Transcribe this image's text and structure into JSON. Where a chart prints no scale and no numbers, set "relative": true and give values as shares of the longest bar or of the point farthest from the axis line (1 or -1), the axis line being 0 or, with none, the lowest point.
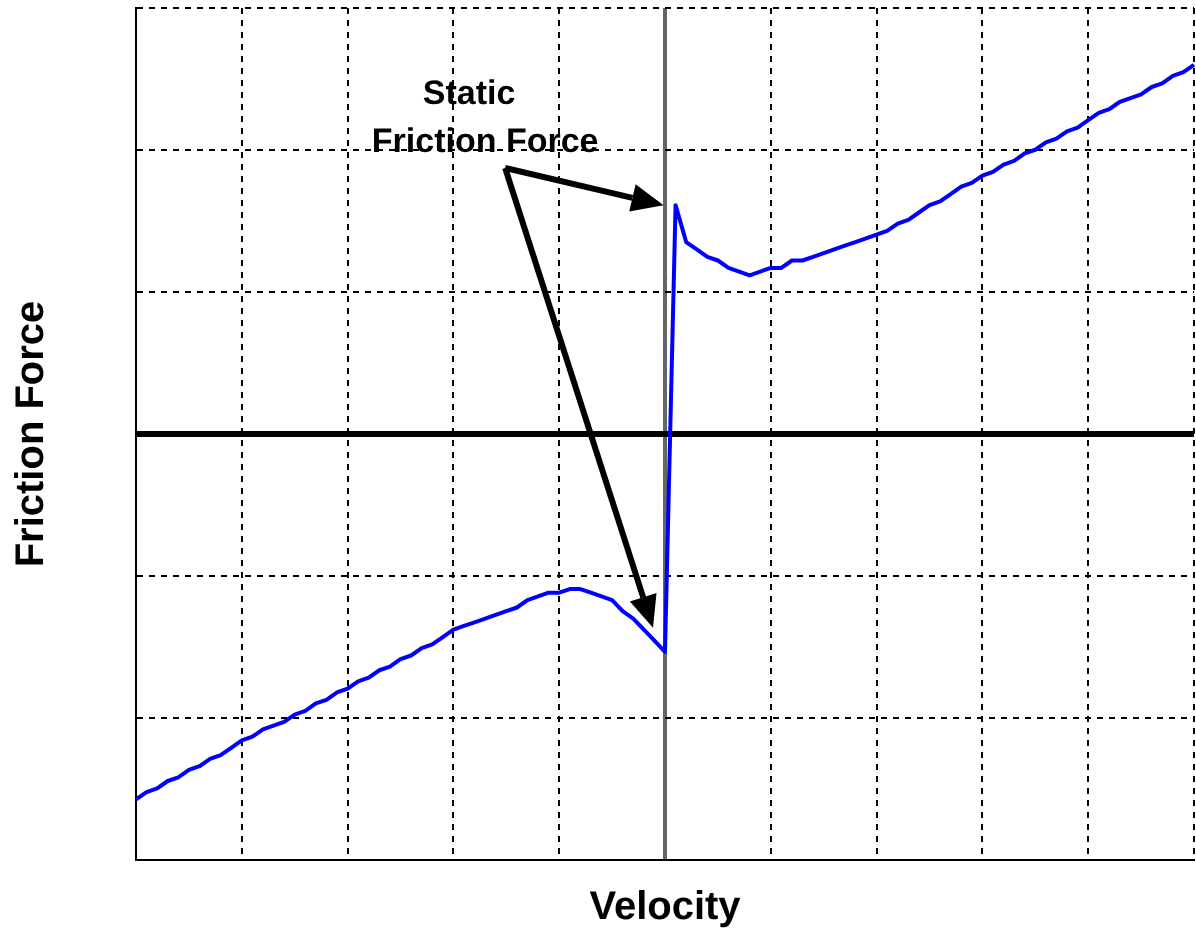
{
  "chart_data": {
    "type": "line",
    "relative": true,
    "xlabel": "Velocity",
    "ylabel": "Friction Force",
    "annotations": [
      "Static Friction Force"
    ],
    "categories": [
      null,
      null,
      null,
      null,
      null,
      null,
      null,
      null,
      null,
      null,
      null,
      null,
      null,
      null,
      null,
      null,
      null,
      null,
      null,
      null,
      null,
      null,
      null,
      null,
      null,
      null,
      null,
      null,
      null,
      null,
      null,
      null,
      null,
      null,
      null,
      null,
      null,
      null,
      null,
      null,
      null,
      null,
      null,
      null,
      null,
      null,
      null,
      null,
      null,
      null,
      null,
      null,
      null,
      null,
      null,
      null,
      null,
      null,
      null,
      null,
      null,
      null,
      null,
      null,
      null,
      null,
      null,
      null,
      null,
      null,
      null,
      null,
      null,
      null,
      null,
      null,
      null,
      null,
      null,
      null,
      null,
      null,
      null,
      null,
      null,
      null,
      null,
      null,
      null,
      null,
      null,
      null,
      null,
      null,
      null,
      null,
      null,
      null,
      null,
      null,
      null
    ],
    "grid": true,
    "marker": "none",
    "line_style": "solid",
    "series": [
      {
        "color": "#0000ff",
        "values": [
          -0.99,
          -0.97,
          -0.96,
          -0.94,
          -0.93,
          -0.91,
          -0.9,
          -0.88,
          -0.87,
          -0.85,
          -0.83,
          -0.82,
          -0.8,
          -0.79,
          -0.78,
          -0.76,
          -0.75,
          -0.73,
          -0.72,
          -0.7,
          -0.69,
          -0.67,
          -0.66,
          -0.64,
          -0.63,
          -0.61,
          -0.6,
          -0.58,
          -0.57,
          -0.55,
          -0.53,
          -0.52,
          -0.51,
          -0.5,
          -0.49,
          -0.48,
          -0.47,
          -0.45,
          -0.44,
          -0.43,
          -0.43,
          -0.42,
          -0.42,
          -0.43,
          -0.44,
          -0.45,
          -0.48,
          -0.5,
          -0.53,
          -0.56,
          -0.59,
          0.62,
          0.52,
          0.5,
          0.48,
          0.47,
          0.45,
          0.44,
          0.43,
          0.44,
          0.45,
          0.45,
          0.47,
          0.47,
          0.48,
          0.49,
          0.5,
          0.51,
          0.52,
          0.53,
          0.54,
          0.55,
          0.57,
          0.58,
          0.6,
          0.62,
          0.63,
          0.65,
          0.67,
          0.68,
          0.7,
          0.71,
          0.73,
          0.74,
          0.76,
          0.77,
          0.79,
          0.8,
          0.82,
          0.83,
          0.85,
          0.87,
          0.88,
          0.9,
          0.91,
          0.92,
          0.94,
          0.95,
          0.97,
          0.98,
          1
        ]
      }
    ]
  }
}
